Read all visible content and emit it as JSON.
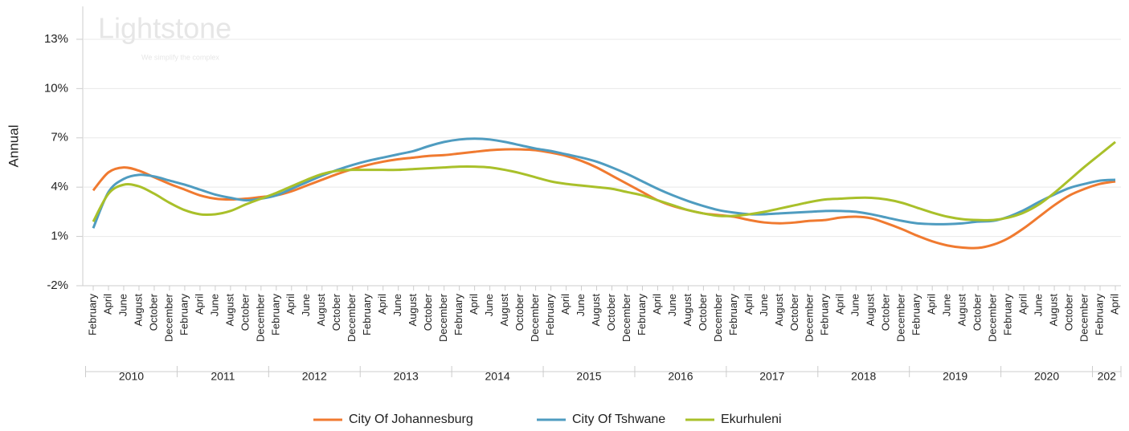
{
  "chart_data": {
    "type": "line",
    "y_label": "Annual",
    "watermark": "Lightstone",
    "watermark_subtitle": "We simplify the complex",
    "categories": [
      "February",
      "April",
      "June",
      "August",
      "October",
      "December",
      "February",
      "April",
      "June",
      "August",
      "October",
      "December",
      "February",
      "April",
      "June",
      "August",
      "October",
      "December",
      "February",
      "April",
      "June",
      "August",
      "October",
      "December",
      "February",
      "April",
      "June",
      "August",
      "October",
      "December",
      "February",
      "April",
      "June",
      "August",
      "October",
      "December",
      "February",
      "April",
      "June",
      "August",
      "October",
      "December",
      "February",
      "April",
      "June",
      "August",
      "October",
      "December",
      "February",
      "April",
      "June",
      "August",
      "October",
      "December",
      "February",
      "April",
      "June",
      "August",
      "October",
      "December",
      "February",
      "April",
      "June",
      "August",
      "October",
      "December",
      "February",
      "April"
    ],
    "x_groups": [
      "2010",
      "2011",
      "2012",
      "2013",
      "2014",
      "2015",
      "2016",
      "2017",
      "2018",
      "2019",
      "2020",
      "202"
    ],
    "series": [
      {
        "name": "City Of Johannesburg",
        "color": "#f07a30",
        "values": [
          3.8,
          4.9,
          5.2,
          5.0,
          4.6,
          4.2,
          3.85,
          3.5,
          3.3,
          3.25,
          3.3,
          3.4,
          3.5,
          3.75,
          4.1,
          4.45,
          4.8,
          5.1,
          5.35,
          5.55,
          5.7,
          5.8,
          5.9,
          5.95,
          6.05,
          6.15,
          6.25,
          6.3,
          6.3,
          6.25,
          6.1,
          5.9,
          5.6,
          5.2,
          4.7,
          4.2,
          3.7,
          3.2,
          2.85,
          2.6,
          2.4,
          2.3,
          2.2,
          2.0,
          1.85,
          1.8,
          1.85,
          1.95,
          2.0,
          2.15,
          2.2,
          2.1,
          1.8,
          1.45,
          1.05,
          0.7,
          0.45,
          0.32,
          0.3,
          0.5,
          0.9,
          1.5,
          2.2,
          2.9,
          3.5,
          3.9,
          4.2,
          4.35
        ]
      },
      {
        "name": "City Of Tshwane",
        "color": "#4f9cc0",
        "values": [
          1.5,
          3.7,
          4.5,
          4.75,
          4.65,
          4.4,
          4.15,
          3.85,
          3.55,
          3.35,
          3.2,
          3.3,
          3.5,
          3.9,
          4.3,
          4.7,
          5.05,
          5.35,
          5.6,
          5.8,
          6.0,
          6.2,
          6.5,
          6.75,
          6.9,
          6.95,
          6.9,
          6.75,
          6.55,
          6.35,
          6.2,
          6.0,
          5.8,
          5.55,
          5.2,
          4.8,
          4.35,
          3.9,
          3.5,
          3.15,
          2.85,
          2.6,
          2.45,
          2.35,
          2.35,
          2.4,
          2.45,
          2.5,
          2.55,
          2.55,
          2.5,
          2.35,
          2.15,
          1.95,
          1.8,
          1.75,
          1.75,
          1.8,
          1.9,
          1.95,
          2.2,
          2.6,
          3.1,
          3.55,
          3.95,
          4.2,
          4.4,
          4.45
        ]
      },
      {
        "name": "Ekurhuleni",
        "color": "#a9c02a",
        "values": [
          1.9,
          3.6,
          4.15,
          4.05,
          3.6,
          3.05,
          2.6,
          2.35,
          2.35,
          2.55,
          2.95,
          3.3,
          3.65,
          4.05,
          4.45,
          4.8,
          5.0,
          5.05,
          5.05,
          5.05,
          5.05,
          5.1,
          5.15,
          5.2,
          5.25,
          5.25,
          5.2,
          5.05,
          4.85,
          4.6,
          4.35,
          4.2,
          4.1,
          4.0,
          3.9,
          3.7,
          3.5,
          3.2,
          2.9,
          2.6,
          2.4,
          2.25,
          2.25,
          2.35,
          2.5,
          2.7,
          2.9,
          3.1,
          3.25,
          3.3,
          3.35,
          3.35,
          3.25,
          3.05,
          2.75,
          2.45,
          2.2,
          2.05,
          2.0,
          2.0,
          2.15,
          2.45,
          2.95,
          3.65,
          4.45,
          5.25,
          6.0,
          6.75
        ]
      }
    ],
    "ylim": [
      -2,
      15
    ],
    "yticks": [
      {
        "value": -2,
        "label": "-2%"
      },
      {
        "value": 1,
        "label": "1%"
      },
      {
        "value": 4,
        "label": "4%"
      },
      {
        "value": 7,
        "label": "7%"
      },
      {
        "value": 10,
        "label": "10%"
      },
      {
        "value": 13,
        "label": "13%"
      }
    ],
    "grid": true
  }
}
